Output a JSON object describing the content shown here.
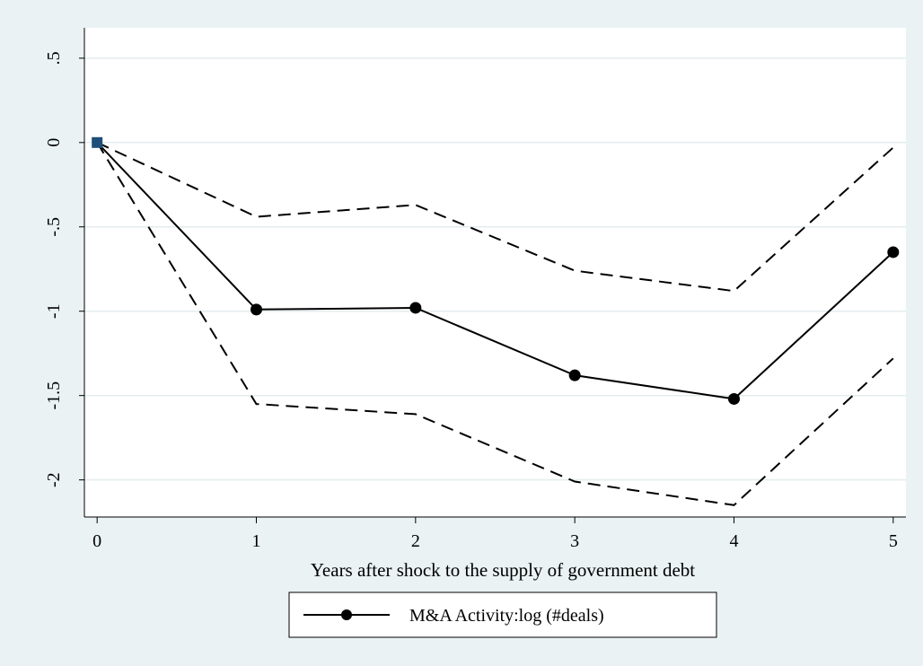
{
  "chart_data": {
    "type": "line",
    "title": "",
    "xlabel": "Years after shock to the supply of government debt",
    "ylabel": "",
    "x": [
      0,
      1,
      2,
      3,
      4,
      5
    ],
    "xlim": [
      -0.08,
      5.08
    ],
    "ylim": [
      -2.22,
      0.68
    ],
    "x_ticks": [
      0,
      1,
      2,
      3,
      4,
      5
    ],
    "y_ticks": [
      0.5,
      0,
      -0.5,
      -1,
      -1.5,
      -2
    ],
    "y_tick_labels": [
      ".5",
      "0",
      "-.5",
      "-1",
      "-1.5",
      "-2"
    ],
    "grid": "horizontal",
    "legend_position": "bottom",
    "series": [
      {
        "name": "M&A Activity:log (#deals)",
        "style": "solid",
        "marker": "circle",
        "color": "#000000",
        "values": [
          0,
          -0.99,
          -0.98,
          -1.38,
          -1.52,
          -0.65
        ]
      },
      {
        "style": "dashed",
        "color": "#000000",
        "values": [
          0,
          -0.44,
          -0.37,
          -0.76,
          -0.88,
          -0.03
        ]
      },
      {
        "style": "dashed",
        "color": "#000000",
        "values": [
          0,
          -1.55,
          -1.61,
          -2.01,
          -2.15,
          -1.28
        ]
      }
    ],
    "origin_marker": {
      "x": 0,
      "y": 0,
      "shape": "square",
      "color": "#1f4e79"
    },
    "colors": {
      "background": "#eaf2f3",
      "plot_area": "#ffffff",
      "grid": "#e3ecee",
      "line": "#000000"
    }
  }
}
